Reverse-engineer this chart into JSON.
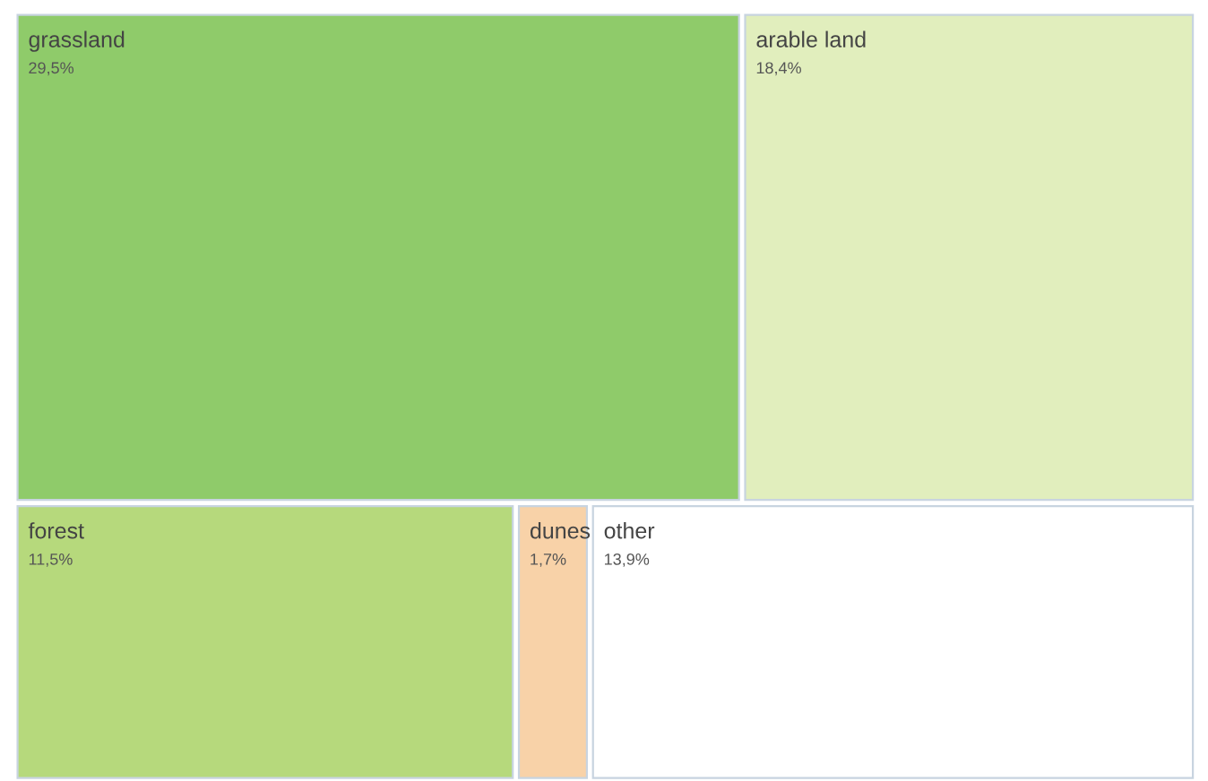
{
  "chart_data": {
    "type": "other",
    "categories": [
      "grassland",
      "arable land",
      "forest",
      "dunes",
      "other"
    ],
    "values": [
      29.5,
      18.4,
      11.5,
      1.7,
      13.9
    ],
    "value_labels": [
      "29,5%",
      "18,4%",
      "11,5%",
      "1,7%",
      "13,9%"
    ],
    "colors": [
      "#8fcb6a",
      "#e1eebd",
      "#b6d97c",
      "#f8d2a8",
      "#ffffff"
    ]
  }
}
